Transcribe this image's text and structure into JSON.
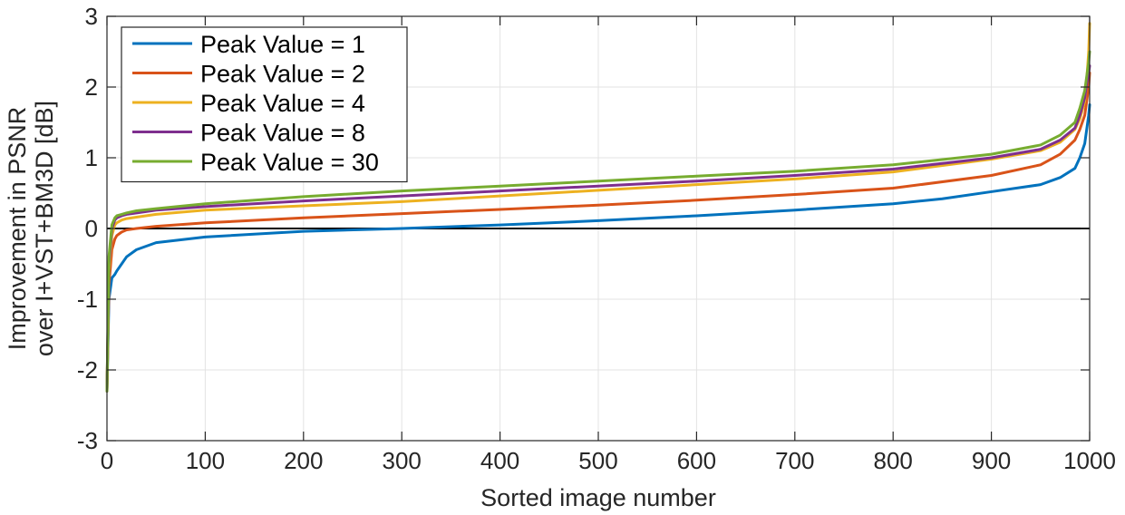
{
  "chart_data": {
    "type": "line",
    "title": "",
    "xlabel": "Sorted image number",
    "ylabel_lines": [
      "Improvement in PSNR",
      "over I+VST+BM3D [dB]"
    ],
    "xlim": [
      0,
      1000
    ],
    "ylim": [
      -3,
      3
    ],
    "xticks": [
      0,
      100,
      200,
      300,
      400,
      500,
      600,
      700,
      800,
      900,
      1000
    ],
    "xtick_labels": [
      "0",
      "100",
      "200",
      "300",
      "400",
      "500",
      "600",
      "700",
      "800",
      "900",
      "1000"
    ],
    "yticks": [
      -3,
      -2,
      -1,
      0,
      1,
      2,
      3
    ],
    "ytick_labels": [
      "-3",
      "-2",
      "-1",
      "0",
      "1",
      "2",
      "3"
    ],
    "grid": true,
    "legend_position": "top-left",
    "reference_line_y": 0,
    "series": [
      {
        "name": "Peak Value = 1",
        "color": "#0072BD",
        "x": [
          0,
          2,
          5,
          8,
          10,
          15,
          20,
          30,
          50,
          100,
          200,
          300,
          400,
          500,
          600,
          700,
          800,
          850,
          900,
          950,
          970,
          985,
          990,
          995,
          997,
          999,
          1000
        ],
        "y": [
          -2.3,
          -1.0,
          -0.7,
          -0.65,
          -0.6,
          -0.5,
          -0.4,
          -0.3,
          -0.2,
          -0.12,
          -0.04,
          0.0,
          0.05,
          0.11,
          0.18,
          0.26,
          0.35,
          0.42,
          0.52,
          0.62,
          0.72,
          0.85,
          1.0,
          1.2,
          1.4,
          1.6,
          1.75
        ]
      },
      {
        "name": "Peak Value = 2",
        "color": "#D95319",
        "x": [
          0,
          2,
          5,
          8,
          10,
          15,
          20,
          30,
          50,
          100,
          200,
          300,
          400,
          500,
          600,
          700,
          800,
          900,
          950,
          970,
          985,
          990,
          995,
          997,
          999,
          1000
        ],
        "y": [
          -2.3,
          -0.8,
          -0.3,
          -0.15,
          -0.1,
          -0.05,
          -0.02,
          0.0,
          0.03,
          0.08,
          0.15,
          0.21,
          0.27,
          0.33,
          0.4,
          0.48,
          0.57,
          0.75,
          0.9,
          1.05,
          1.25,
          1.4,
          1.6,
          1.8,
          2.0,
          2.2
        ]
      },
      {
        "name": "Peak Value = 4",
        "color": "#EDB120",
        "x": [
          0,
          2,
          5,
          8,
          10,
          15,
          20,
          30,
          50,
          100,
          200,
          300,
          400,
          500,
          600,
          700,
          800,
          900,
          950,
          970,
          985,
          990,
          995,
          997,
          999,
          1000
        ],
        "y": [
          -2.3,
          -0.6,
          -0.1,
          0.05,
          0.08,
          0.12,
          0.14,
          0.16,
          0.2,
          0.26,
          0.32,
          0.38,
          0.46,
          0.54,
          0.62,
          0.7,
          0.8,
          0.98,
          1.1,
          1.22,
          1.4,
          1.55,
          1.8,
          2.1,
          2.5,
          2.9
        ]
      },
      {
        "name": "Peak Value = 8",
        "color": "#7E2F8E",
        "x": [
          0,
          2,
          5,
          8,
          10,
          15,
          20,
          30,
          50,
          100,
          200,
          300,
          400,
          500,
          600,
          700,
          800,
          900,
          950,
          970,
          985,
          990,
          995,
          997,
          999,
          1000
        ],
        "y": [
          -2.3,
          -0.5,
          0.0,
          0.12,
          0.15,
          0.18,
          0.2,
          0.22,
          0.26,
          0.31,
          0.39,
          0.46,
          0.53,
          0.6,
          0.67,
          0.75,
          0.84,
          1.0,
          1.12,
          1.25,
          1.42,
          1.6,
          1.85,
          2.05,
          2.2,
          2.3
        ]
      },
      {
        "name": "Peak Value = 30",
        "color": "#77AC30",
        "x": [
          0,
          2,
          5,
          8,
          10,
          15,
          20,
          30,
          50,
          100,
          200,
          300,
          400,
          500,
          600,
          700,
          800,
          900,
          950,
          970,
          985,
          990,
          995,
          997,
          999,
          1000
        ],
        "y": [
          -2.3,
          -0.4,
          0.05,
          0.15,
          0.18,
          0.2,
          0.22,
          0.25,
          0.28,
          0.35,
          0.45,
          0.53,
          0.6,
          0.67,
          0.74,
          0.81,
          0.9,
          1.05,
          1.18,
          1.32,
          1.5,
          1.7,
          1.95,
          2.15,
          2.35,
          2.5
        ]
      }
    ]
  }
}
